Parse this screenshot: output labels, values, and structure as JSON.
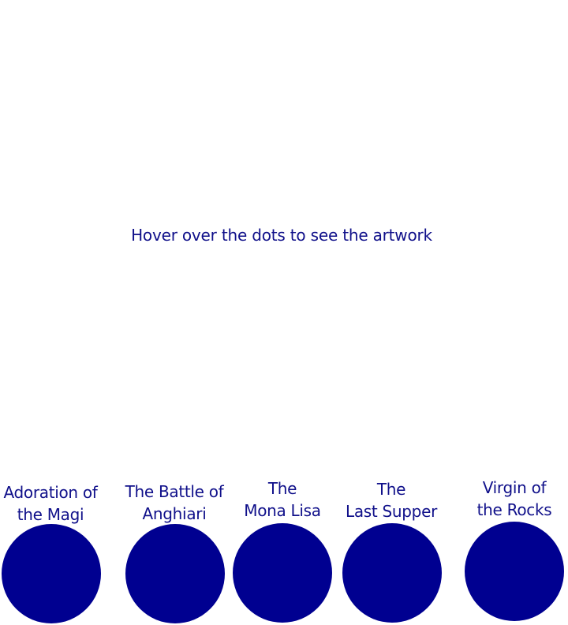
{
  "instruction": "Hover over the dots to see the artwork",
  "artworks": [
    {
      "line1": "Adoration of",
      "line2": "the Magi"
    },
    {
      "line1": "The Battle of",
      "line2": "Anghiari"
    },
    {
      "line1": "The",
      "line2": "Mona Lisa"
    },
    {
      "line1": "The",
      "line2": "Last Supper"
    },
    {
      "line1": "Virgin of",
      "line2": "the Rocks"
    }
  ],
  "colors": {
    "dot": "#000090",
    "text": "#10108a",
    "background": "#ffffff"
  }
}
